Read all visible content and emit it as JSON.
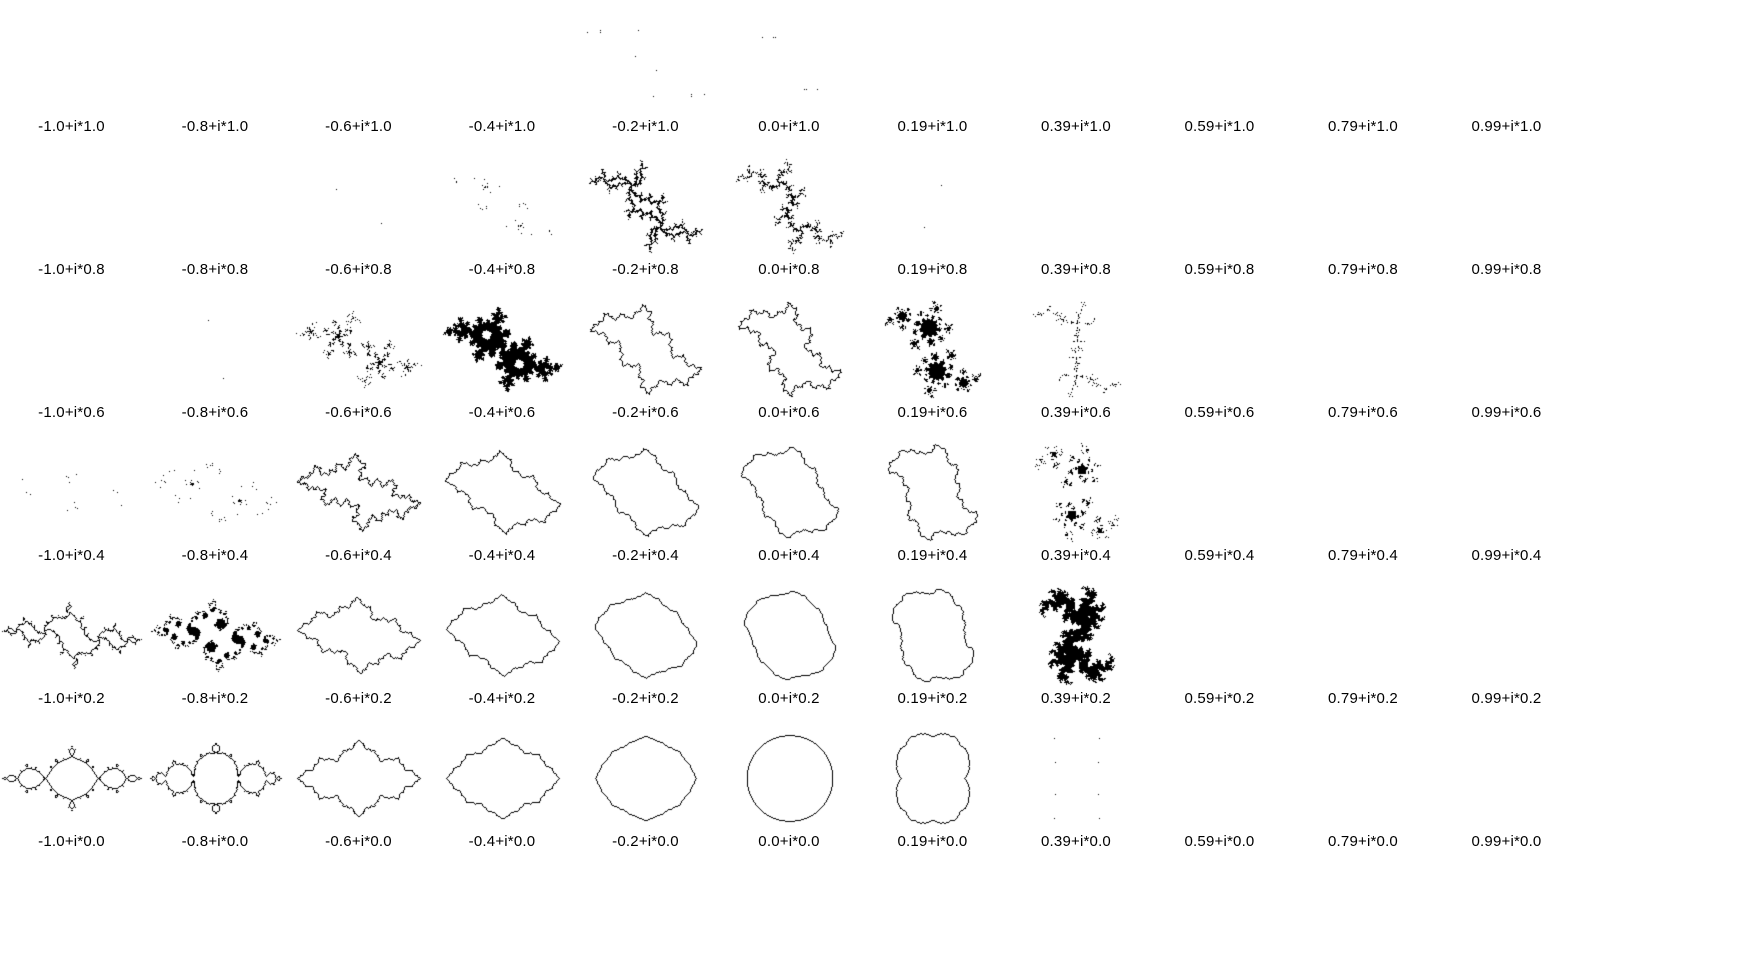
{
  "grid": {
    "columns": [
      -1.0,
      -0.8,
      -0.6,
      -0.4,
      -0.2,
      0.0,
      0.19,
      0.39,
      0.59,
      0.79,
      0.99
    ],
    "rows": [
      1.0,
      0.8,
      0.6,
      0.4,
      0.2,
      0.0
    ],
    "labels": [
      [
        "-1.0+i*1.0",
        "-0.8+i*1.0",
        "-0.6+i*1.0",
        "-0.4+i*1.0",
        "-0.2+i*1.0",
        "0.0+i*1.0",
        "0.19+i*1.0",
        "0.39+i*1.0",
        "0.59+i*1.0",
        "0.79+i*1.0",
        "0.99+i*1.0"
      ],
      [
        "-1.0+i*0.8",
        "-0.8+i*0.8",
        "-0.6+i*0.8",
        "-0.4+i*0.8",
        "-0.2+i*0.8",
        "0.0+i*0.8",
        "0.19+i*0.8",
        "0.39+i*0.8",
        "0.59+i*0.8",
        "0.79+i*0.8",
        "0.99+i*0.8"
      ],
      [
        "-1.0+i*0.6",
        "-0.8+i*0.6",
        "-0.6+i*0.6",
        "-0.4+i*0.6",
        "-0.2+i*0.6",
        "0.0+i*0.6",
        "0.19+i*0.6",
        "0.39+i*0.6",
        "0.59+i*0.6",
        "0.79+i*0.6",
        "0.99+i*0.6"
      ],
      [
        "-1.0+i*0.4",
        "-0.8+i*0.4",
        "-0.6+i*0.4",
        "-0.4+i*0.4",
        "-0.2+i*0.4",
        "0.0+i*0.4",
        "0.19+i*0.4",
        "0.39+i*0.4",
        "0.59+i*0.4",
        "0.79+i*0.4",
        "0.99+i*0.4"
      ],
      [
        "-1.0+i*0.2",
        "-0.8+i*0.2",
        "-0.6+i*0.2",
        "-0.4+i*0.2",
        "-0.2+i*0.2",
        "0.0+i*0.2",
        "0.19+i*0.2",
        "0.39+i*0.2",
        "0.59+i*0.2",
        "0.79+i*0.2",
        "0.99+i*0.2"
      ],
      [
        "-1.0+i*0.0",
        "-0.8+i*0.0",
        "-0.6+i*0.0",
        "-0.4+i*0.0",
        "-0.2+i*0.0",
        "0.0+i*0.0",
        "0.19+i*0.0",
        "0.39+i*0.0",
        "0.59+i*0.0",
        "0.79+i*0.0",
        "0.99+i*0.0"
      ]
    ]
  },
  "colors": {
    "background": "#ffffff",
    "curve": "#000000"
  }
}
